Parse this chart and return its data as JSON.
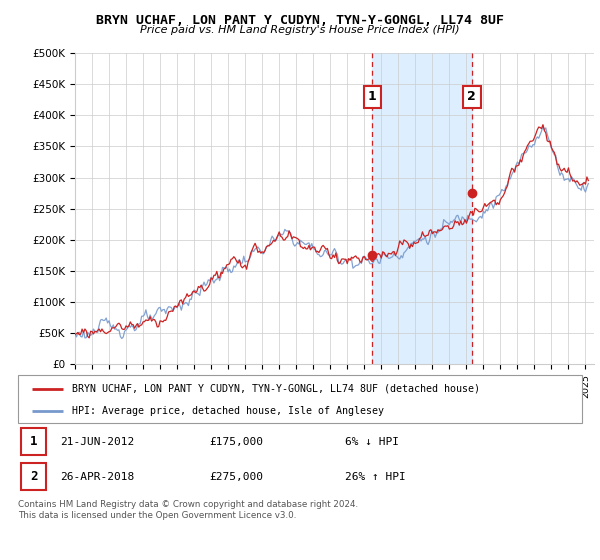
{
  "title": "BRYN UCHAF, LON PANT Y CUDYN, TYN-Y-GONGL, LL74 8UF",
  "subtitle": "Price paid vs. HM Land Registry's House Price Index (HPI)",
  "legend_line1": "BRYN UCHAF, LON PANT Y CUDYN, TYN-Y-GONGL, LL74 8UF (detached house)",
  "legend_line2": "HPI: Average price, detached house, Isle of Anglesey",
  "footer1": "Contains HM Land Registry data © Crown copyright and database right 2024.",
  "footer2": "This data is licensed under the Open Government Licence v3.0.",
  "sale1_date": "21-JUN-2012",
  "sale1_price": "£175,000",
  "sale1_hpi": "6% ↓ HPI",
  "sale2_date": "26-APR-2018",
  "sale2_price": "£275,000",
  "sale2_hpi": "26% ↑ HPI",
  "sale1_x": 2012.47,
  "sale1_y": 175000,
  "sale2_x": 2018.32,
  "sale2_y": 275000,
  "red_line_color": "#cc2222",
  "blue_line_color": "#7799cc",
  "highlight_color": "#ddeeff",
  "vline_color": "#cc2222",
  "background_color": "#ffffff",
  "ylim": [
    0,
    500000
  ],
  "xlim_start": 1995,
  "xlim_end": 2025.5
}
